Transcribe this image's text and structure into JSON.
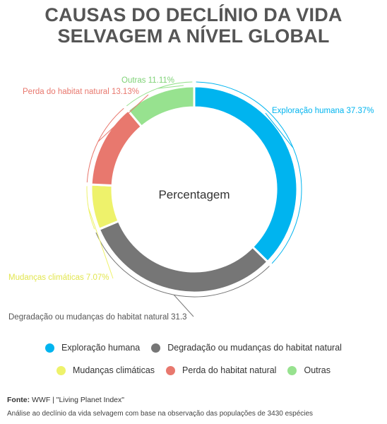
{
  "page": {
    "title_line1": "CAUSAS DO DECLÍNIO DA VIDA",
    "title_line2": "SELVAGEM A NÍVEL GLOBAL",
    "source_label": "Fonte:",
    "source_text": "WWF | \"Living Planet Index\"",
    "note": "Análise ao declínio da vida selvagem com base na observação das populações de 3430 espécies"
  },
  "chart_data": {
    "type": "pie",
    "style": "donut",
    "center_label": "Percentagem",
    "slices": [
      {
        "name": "Exploração humana",
        "value": 37.37,
        "label": "Exploração humana 37.37%",
        "color": "#00b4ef"
      },
      {
        "name": "Degradação ou mudanças do habitat natural",
        "value": 31.3,
        "label": "Degradação ou mudanças do habitat natural 31.3",
        "color": "#767676"
      },
      {
        "name": "Mudanças climáticas",
        "value": 7.07,
        "label": "Mudanças climáticas 7.07%",
        "color": "#eef26b"
      },
      {
        "name": "Perda do habitat natural",
        "value": 13.13,
        "label": "Perda do habitat natural 13.13%",
        "color": "#e8786e"
      },
      {
        "name": "Outras",
        "value": 11.11,
        "label": "Outras 11.11%",
        "color": "#97e28f"
      }
    ],
    "legend_placement": "bottom"
  }
}
